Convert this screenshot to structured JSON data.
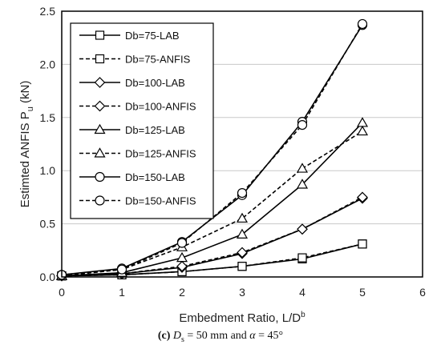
{
  "chart_data": {
    "type": "line",
    "title": "",
    "xlabel": "Embedment Ratio, L/D",
    "xlabel_sup": "b",
    "ylabel": "Estimted ANFIS  P",
    "ylabel_sub": "u",
    "ylabel_unit": " (kN)",
    "xlim": [
      0,
      6
    ],
    "ylim": [
      0,
      2.5
    ],
    "xticks": [
      "0",
      "1",
      "2",
      "3",
      "4",
      "5",
      "6"
    ],
    "yticks": [
      "0.0",
      "0.5",
      "1.0",
      "1.5",
      "2.0",
      "2.5"
    ],
    "grid": "horizontal",
    "legend_position": "top-left",
    "series": [
      {
        "name": "Db=75-LAB",
        "marker": "square",
        "dash": "solid",
        "x": [
          0,
          1,
          2,
          3,
          4,
          5
        ],
        "y": [
          0.01,
          0.02,
          0.05,
          0.1,
          0.17,
          0.31
        ]
      },
      {
        "name": "Db=75-ANFIS",
        "marker": "square",
        "dash": "dashed",
        "x": [
          0,
          1,
          2,
          3,
          4,
          5
        ],
        "y": [
          0.01,
          0.02,
          0.05,
          0.1,
          0.18,
          0.31
        ]
      },
      {
        "name": "Db=100-LAB",
        "marker": "diamond",
        "dash": "solid",
        "x": [
          0,
          1,
          2,
          3,
          4,
          5
        ],
        "y": [
          0.01,
          0.03,
          0.09,
          0.22,
          0.45,
          0.74
        ]
      },
      {
        "name": "Db=100-ANFIS",
        "marker": "diamond",
        "dash": "dashed",
        "x": [
          0,
          1,
          2,
          3,
          4,
          5
        ],
        "y": [
          0.01,
          0.03,
          0.1,
          0.23,
          0.45,
          0.75
        ]
      },
      {
        "name": "Db=125-LAB",
        "marker": "triangle",
        "dash": "solid",
        "x": [
          0,
          1,
          2,
          3,
          4,
          5
        ],
        "y": [
          0.01,
          0.04,
          0.18,
          0.4,
          0.87,
          1.45
        ]
      },
      {
        "name": "Db=125-ANFIS",
        "marker": "triangle",
        "dash": "dashed",
        "x": [
          0,
          1,
          2,
          3,
          4,
          5
        ],
        "y": [
          0.01,
          0.07,
          0.28,
          0.55,
          1.02,
          1.37
        ]
      },
      {
        "name": "Db=150-LAB",
        "marker": "circle",
        "dash": "solid",
        "x": [
          0,
          1,
          2,
          3,
          4,
          5
        ],
        "y": [
          0.02,
          0.08,
          0.33,
          0.77,
          1.46,
          2.37
        ]
      },
      {
        "name": "Db=150-ANFIS",
        "marker": "circle",
        "dash": "dashed",
        "x": [
          0,
          1,
          2,
          3,
          4,
          5
        ],
        "y": [
          0.02,
          0.07,
          0.32,
          0.79,
          1.43,
          2.38
        ]
      }
    ]
  },
  "caption": {
    "label": "(c)",
    "symbol": "D",
    "symbol_sub": "s",
    "text_mid": " = 50 mm and ",
    "alpha": "α",
    "text_end": " = 45°"
  }
}
